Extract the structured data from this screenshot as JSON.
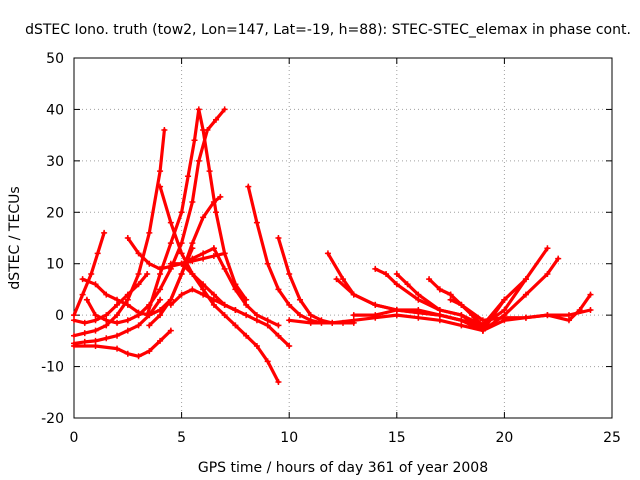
{
  "chart_data": {
    "type": "line",
    "title": "dSTEC Iono. truth (tow2, Lon=147, Lat=-19, h=88): STEC-STEC_elemax in phase cont.",
    "xlabel": "GPS time / hours of day 361 of year 2008",
    "ylabel": "dSTEC  / TECUs",
    "xlim": [
      0,
      25
    ],
    "ylim": [
      -20,
      50
    ],
    "xticks": [
      0,
      5,
      10,
      15,
      20,
      25
    ],
    "yticks": [
      -20,
      -10,
      0,
      10,
      20,
      30,
      40,
      50
    ],
    "grid": true,
    "legend": "none",
    "color": "#ff0000",
    "marker": "plus",
    "series": [
      {
        "x": [
          0.0,
          0.4,
          0.8,
          1.1,
          1.4
        ],
        "y": [
          0,
          4,
          8,
          12,
          16
        ]
      },
      {
        "x": [
          0.0,
          0.5,
          1.0,
          1.5,
          2.0,
          2.5,
          3.0,
          3.4
        ],
        "y": [
          -1,
          -1.5,
          -1,
          0,
          2,
          4,
          6,
          8
        ]
      },
      {
        "x": [
          0.0,
          0.5,
          1.0,
          1.5,
          2.0,
          2.5,
          3.0,
          3.5,
          4.0,
          4.2
        ],
        "y": [
          -4,
          -3.5,
          -3,
          -2,
          0,
          3,
          8,
          16,
          28,
          36
        ]
      },
      {
        "x": [
          0.0,
          0.5,
          1.0,
          1.5,
          2.0,
          2.5,
          3.0,
          3.5,
          4.0
        ],
        "y": [
          -5.5,
          -5.2,
          -5,
          -4.5,
          -4,
          -3,
          -2,
          0,
          3
        ]
      },
      {
        "x": [
          0.0,
          1.0,
          2.0,
          2.5,
          3.0,
          3.5,
          4.0,
          4.5
        ],
        "y": [
          -6,
          -6,
          -6.5,
          -7.5,
          -8,
          -7,
          -5,
          -3
        ]
      },
      {
        "x": [
          0.4,
          1.0,
          1.5,
          2.0,
          2.5,
          3.0,
          3.5,
          4.0,
          4.5,
          5.0,
          5.5
        ],
        "y": [
          7,
          6,
          4,
          3,
          2,
          0.5,
          0,
          1,
          3,
          8,
          13
        ]
      },
      {
        "x": [
          0.6,
          1.0,
          1.5,
          2.0,
          2.5,
          3.0,
          3.5
        ],
        "y": [
          3,
          0,
          -1,
          -1.5,
          -1,
          0,
          2
        ]
      },
      {
        "x": [
          3.0,
          3.5,
          4.0,
          4.5,
          5.0,
          5.5,
          5.8,
          6.2,
          6.6,
          7.0
        ],
        "y": [
          0,
          2,
          5,
          9,
          14,
          22,
          30,
          36,
          38,
          40
        ]
      },
      {
        "x": [
          3.4,
          4.0,
          4.5,
          5.0,
          5.3,
          5.6,
          5.8,
          6.0,
          6.3,
          6.6,
          7.0,
          7.5,
          8.0
        ],
        "y": [
          0,
          8,
          14,
          20,
          27,
          34,
          40,
          36,
          28,
          20,
          12,
          6,
          3
        ]
      },
      {
        "x": [
          2.5,
          3.0,
          3.5,
          4.0,
          4.5,
          5.0,
          5.5,
          6.0,
          6.5
        ],
        "y": [
          15,
          12,
          10,
          9,
          9.5,
          10,
          11,
          12,
          13
        ]
      },
      {
        "x": [
          4.0,
          4.5,
          5.0,
          5.5,
          6.0,
          6.5,
          7.0,
          7.5
        ],
        "y": [
          25,
          18,
          12,
          8,
          6,
          4,
          2,
          1
        ]
      },
      {
        "x": [
          4.5,
          5.0,
          5.5,
          6.0,
          6.5,
          7.0
        ],
        "y": [
          10,
          10,
          10.5,
          11,
          11.5,
          12
        ]
      },
      {
        "x": [
          5.0,
          5.5,
          6.0,
          6.5,
          7.0,
          7.5,
          8.0,
          8.5,
          9.0,
          9.5
        ],
        "y": [
          10,
          8,
          5,
          2,
          0,
          -2,
          -4,
          -6,
          -9,
          -13
        ]
      },
      {
        "x": [
          4.5,
          5.0,
          5.5,
          6.0,
          6.5,
          7.0,
          7.5,
          8.0,
          8.5,
          9.0,
          9.5,
          10.0
        ],
        "y": [
          2,
          4,
          5,
          4,
          3,
          2,
          1,
          0,
          -1,
          -2,
          -4,
          -6
        ]
      },
      {
        "x": [
          3.5,
          4.0,
          4.5,
          5.0,
          5.5,
          6.0,
          6.5,
          6.8
        ],
        "y": [
          -2,
          0,
          3,
          8,
          14,
          19,
          22,
          23
        ]
      },
      {
        "x": [
          6.5,
          7.0,
          7.5,
          8.0,
          8.5,
          9.0,
          9.5
        ],
        "y": [
          13,
          9,
          5,
          2,
          0,
          -1,
          -2
        ]
      },
      {
        "x": [
          8.1,
          8.5,
          9.0,
          9.5,
          10.0,
          10.5,
          11.0,
          11.5
        ],
        "y": [
          25,
          18,
          10,
          5,
          2,
          0,
          -1,
          -1.5
        ]
      },
      {
        "x": [
          9.5,
          10.0,
          10.5,
          11.0,
          11.5,
          12.0,
          12.5,
          13.0
        ],
        "y": [
          15,
          8,
          3,
          0,
          -1,
          -1.5,
          -1.5,
          -1.5
        ]
      },
      {
        "x": [
          11.8,
          12.5,
          13.0,
          14.0,
          15.0,
          16.0,
          17.0,
          18.0,
          19.0,
          20.0,
          21.0,
          22.0
        ],
        "y": [
          12,
          7,
          4,
          2,
          1,
          0.5,
          0,
          -1,
          -2,
          1,
          7,
          13
        ]
      },
      {
        "x": [
          12.2,
          13.0,
          14.0,
          15.0,
          16.0,
          17.0,
          18.0,
          19.0,
          20.0,
          21.0,
          22.0,
          22.5
        ],
        "y": [
          7,
          4,
          2,
          1,
          0.5,
          0,
          -1,
          -3,
          0,
          4,
          8,
          11
        ]
      },
      {
        "x": [
          14.0,
          14.5,
          15.0,
          16.0,
          17.0,
          18.0,
          19.0,
          20.0,
          21.0
        ],
        "y": [
          9,
          8,
          6,
          3,
          1,
          0,
          -2,
          3,
          7
        ]
      },
      {
        "x": [
          15.0,
          15.5,
          16.0,
          17.0,
          18.0,
          19.0,
          20.0
        ],
        "y": [
          8,
          6,
          4,
          1,
          0,
          -3,
          3
        ]
      },
      {
        "x": [
          16.5,
          17.0,
          17.5,
          18.0,
          19.0,
          20.0
        ],
        "y": [
          7,
          5,
          4,
          2,
          -2,
          3
        ]
      },
      {
        "x": [
          17.0,
          17.5,
          18.0,
          18.5,
          19.0
        ],
        "y": [
          5,
          4,
          2,
          0,
          -3
        ]
      },
      {
        "x": [
          10.0,
          11.0,
          12.0,
          13.0,
          14.0,
          15.0,
          16.0,
          17.0,
          18.0,
          19.0,
          20.0,
          21.0,
          22.0,
          23.0,
          24.0
        ],
        "y": [
          -1,
          -1.5,
          -1.5,
          -1,
          -0.5,
          0,
          -0.5,
          -1,
          -2,
          -3,
          -1,
          -0.5,
          0,
          0,
          1
        ]
      },
      {
        "x": [
          17.5,
          18.0,
          19.0,
          20.0,
          21.0,
          22.0,
          23.0,
          23.5,
          24.0
        ],
        "y": [
          3,
          2,
          -1,
          -0.5,
          -0.5,
          0,
          -1,
          1,
          4
        ]
      },
      {
        "x": [
          13.0,
          14.0,
          15.0,
          16.0,
          17.0,
          18.0,
          19.0
        ],
        "y": [
          0,
          0,
          1,
          1,
          0,
          -1,
          -3
        ]
      }
    ]
  }
}
